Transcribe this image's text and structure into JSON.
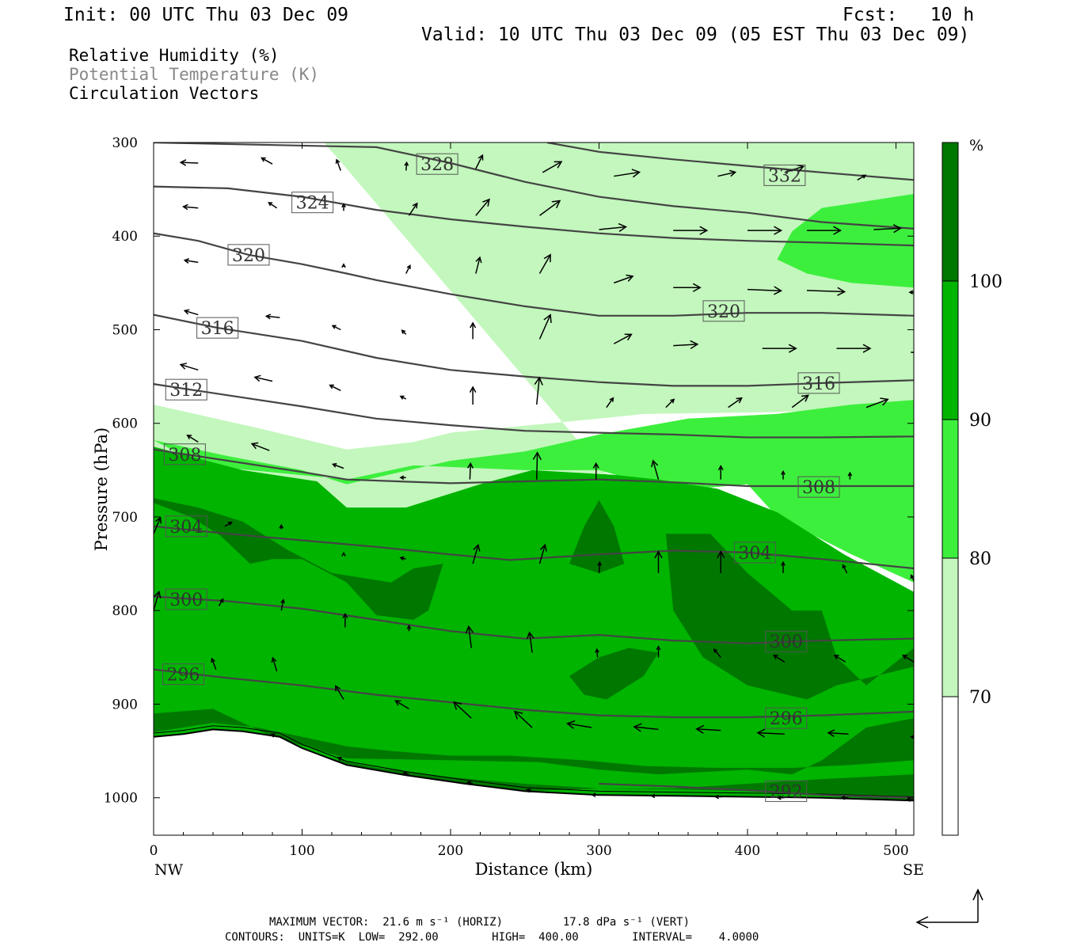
{
  "header": {
    "init": "Init: 00 UTC Thu 03 Dec 09",
    "fcst": "Fcst:   10 h",
    "valid": "Valid: 10 UTC Thu 03 Dec 09 (05 EST Thu 03 Dec 09)"
  },
  "legend": {
    "rh": "Relative Humidity (%)",
    "theta": "Potential Temperature (K)",
    "vectors": "Circulation Vectors"
  },
  "colors": {
    "rh_bands": [
      "#ffffff",
      "#c3f7bd",
      "#3def3d",
      "#00b400",
      "#007800"
    ],
    "contour": "#444444",
    "theta_legend": "#888888"
  },
  "colorbar": {
    "unit": "%",
    "ticks": [
      "70",
      "80",
      "90",
      "100"
    ]
  },
  "chart_data": {
    "type": "contour-cross-section",
    "xlabel": "Distance (km)",
    "ylabel": "Pressure (hPa)",
    "x_ticks": [
      0,
      100,
      200,
      300,
      400,
      500
    ],
    "y_ticks": [
      300,
      400,
      500,
      600,
      700,
      800,
      900,
      1000
    ],
    "xlim": [
      0,
      512
    ],
    "ylim": [
      1040,
      300
    ],
    "x_end_labels": {
      "left": "NW",
      "right": "SE"
    },
    "theta_contours": [
      {
        "label": "332",
        "label_at": [
          425,
          335
        ],
        "points": [
          [
            265,
            300
          ],
          [
            300,
            310
          ],
          [
            350,
            318
          ],
          [
            400,
            325
          ],
          [
            450,
            332
          ],
          [
            512,
            340
          ]
        ]
      },
      {
        "label": "328",
        "label_at": [
          191,
          323
        ],
        "points": [
          [
            0,
            300
          ],
          [
            150,
            305
          ],
          [
            200,
            322
          ],
          [
            250,
            342
          ],
          [
            300,
            358
          ],
          [
            350,
            368
          ],
          [
            400,
            375
          ],
          [
            450,
            385
          ],
          [
            512,
            392
          ]
        ]
      },
      {
        "label": "324",
        "label_at": [
          107,
          364
        ],
        "points": [
          [
            0,
            347
          ],
          [
            50,
            349
          ],
          [
            100,
            358
          ],
          [
            150,
            372
          ],
          [
            200,
            382
          ],
          [
            250,
            390
          ],
          [
            300,
            397
          ],
          [
            350,
            402
          ],
          [
            400,
            405
          ],
          [
            450,
            407
          ],
          [
            512,
            410
          ]
        ]
      },
      {
        "label": "320",
        "label_at": [
          64,
          420
        ],
        "points": [
          [
            0,
            397
          ],
          [
            30,
            405
          ],
          [
            64,
            420
          ],
          [
            100,
            430
          ],
          [
            130,
            440
          ],
          [
            150,
            447
          ],
          [
            200,
            462
          ],
          [
            250,
            475
          ],
          [
            300,
            485
          ],
          [
            350,
            485
          ],
          [
            400,
            482
          ],
          [
            450,
            482
          ],
          [
            512,
            485
          ]
        ]
      },
      {
        "label": "320",
        "label_at": [
          384,
          480
        ],
        "points": null
      },
      {
        "label": "316",
        "label_at": [
          43,
          498
        ],
        "points": [
          [
            0,
            484
          ],
          [
            43,
            498
          ],
          [
            100,
            512
          ],
          [
            150,
            530
          ],
          [
            200,
            543
          ],
          [
            250,
            550
          ],
          [
            300,
            556
          ],
          [
            350,
            560
          ],
          [
            400,
            560
          ],
          [
            450,
            557
          ],
          [
            512,
            554
          ]
        ]
      },
      {
        "label": "316",
        "label_at": [
          448,
          557
        ],
        "points": null
      },
      {
        "label": "312",
        "label_at": [
          22,
          564
        ],
        "points": [
          [
            0,
            558
          ],
          [
            50,
            570
          ],
          [
            100,
            582
          ],
          [
            150,
            595
          ],
          [
            200,
            602
          ],
          [
            250,
            608
          ],
          [
            300,
            610
          ],
          [
            350,
            612
          ],
          [
            400,
            615
          ],
          [
            450,
            615
          ],
          [
            512,
            614
          ]
        ]
      },
      {
        "label": "308",
        "label_at": [
          21,
          633
        ],
        "points": [
          [
            0,
            628
          ],
          [
            50,
            640
          ],
          [
            100,
            652
          ],
          [
            130,
            660
          ],
          [
            200,
            664
          ],
          [
            250,
            662
          ],
          [
            300,
            660
          ],
          [
            350,
            663
          ],
          [
            400,
            667
          ],
          [
            450,
            667
          ],
          [
            512,
            667
          ]
        ]
      },
      {
        "label": "308",
        "label_at": [
          448,
          668
        ],
        "points": null
      },
      {
        "label": "304",
        "label_at": [
          22,
          710
        ],
        "points": [
          [
            0,
            710
          ],
          [
            50,
            718
          ],
          [
            100,
            725
          ],
          [
            150,
            732
          ],
          [
            200,
            740
          ],
          [
            240,
            746
          ],
          [
            300,
            740
          ],
          [
            350,
            736
          ],
          [
            400,
            738
          ],
          [
            450,
            745
          ],
          [
            512,
            755
          ]
        ]
      },
      {
        "label": "304",
        "label_at": [
          405,
          738
        ],
        "points": null
      },
      {
        "label": "300",
        "label_at": [
          22,
          788
        ],
        "points": [
          [
            0,
            785
          ],
          [
            50,
            790
          ],
          [
            100,
            798
          ],
          [
            150,
            810
          ],
          [
            200,
            822
          ],
          [
            250,
            830
          ],
          [
            300,
            826
          ],
          [
            350,
            832
          ],
          [
            400,
            835
          ],
          [
            450,
            832
          ],
          [
            512,
            830
          ]
        ]
      },
      {
        "label": "300",
        "label_at": [
          426,
          833
        ],
        "points": null
      },
      {
        "label": "296",
        "label_at": [
          20,
          868
        ],
        "points": [
          [
            0,
            863
          ],
          [
            50,
            872
          ],
          [
            100,
            880
          ],
          [
            150,
            890
          ],
          [
            200,
            898
          ],
          [
            250,
            906
          ],
          [
            300,
            912
          ],
          [
            350,
            914
          ],
          [
            400,
            914
          ],
          [
            450,
            912
          ],
          [
            512,
            908
          ]
        ]
      },
      {
        "label": "296",
        "label_at": [
          426,
          915
        ],
        "points": null
      },
      {
        "label": "292",
        "label_at": [
          426,
          993
        ],
        "points": [
          [
            300,
            985
          ],
          [
            350,
            988
          ],
          [
            400,
            992
          ],
          [
            450,
            997
          ],
          [
            512,
            1000
          ]
        ]
      }
    ],
    "terrain_pressure": [
      [
        0,
        935
      ],
      [
        20,
        932
      ],
      [
        40,
        927
      ],
      [
        60,
        929
      ],
      [
        85,
        935
      ],
      [
        100,
        947
      ],
      [
        130,
        965
      ],
      [
        170,
        976
      ],
      [
        210,
        985
      ],
      [
        250,
        993
      ],
      [
        300,
        997
      ],
      [
        350,
        998
      ],
      [
        400,
        999
      ],
      [
        450,
        1000
      ],
      [
        512,
        1003
      ]
    ],
    "vectors": [
      [
        30,
        322,
        -1.3,
        0.05
      ],
      [
        80,
        323,
        -0.8,
        0.45
      ],
      [
        126,
        330,
        -0.3,
        0.8
      ],
      [
        170,
        330,
        0.05,
        0.6
      ],
      [
        217,
        328,
        0.5,
        1.0
      ],
      [
        262,
        332,
        1.4,
        0.8
      ],
      [
        310,
        336,
        1.9,
        0.3
      ],
      [
        380,
        336,
        1.3,
        0.3
      ],
      [
        425,
        332,
        1.4,
        0.45
      ],
      [
        474,
        340,
        0.6,
        0.35
      ],
      [
        30,
        370,
        -1.1,
        0.1
      ],
      [
        83,
        370,
        -0.6,
        0.4
      ],
      [
        128,
        373,
        0.0,
        0.5
      ],
      [
        172,
        378,
        0.6,
        0.9
      ],
      [
        217,
        378,
        1.0,
        1.2
      ],
      [
        260,
        378,
        1.5,
        1.1
      ],
      [
        300,
        393,
        2.0,
        0.2
      ],
      [
        350,
        394,
        2.5,
        0.0
      ],
      [
        400,
        394,
        2.5,
        0.0
      ],
      [
        440,
        394,
        2.5,
        0.0
      ],
      [
        485,
        393,
        2.0,
        0.1
      ],
      [
        30,
        428,
        -1.0,
        0.15
      ],
      [
        128,
        433,
        0.0,
        0.2
      ],
      [
        170,
        440,
        0.3,
        0.6
      ],
      [
        217,
        440,
        0.3,
        1.2
      ],
      [
        260,
        440,
        0.8,
        1.4
      ],
      [
        310,
        450,
        1.4,
        0.5
      ],
      [
        350,
        455,
        2.0,
        0.0
      ],
      [
        400,
        457,
        2.5,
        -0.1
      ],
      [
        440,
        458,
        2.8,
        -0.1
      ],
      [
        512,
        460,
        -0.3,
        0.0
      ],
      [
        30,
        484,
        -1.0,
        0.3
      ],
      [
        85,
        487,
        -1.0,
        0.1
      ],
      [
        126,
        500,
        -0.6,
        0.3
      ],
      [
        170,
        505,
        -0.3,
        0.3
      ],
      [
        215,
        510,
        0.0,
        1.2
      ],
      [
        260,
        510,
        0.8,
        1.8
      ],
      [
        310,
        515,
        1.3,
        0.7
      ],
      [
        350,
        517,
        1.8,
        0.1
      ],
      [
        410,
        520,
        2.5,
        0.0
      ],
      [
        460,
        520,
        2.5,
        0.0
      ],
      [
        510,
        524,
        0.5,
        -0.05
      ],
      [
        30,
        543,
        -1.3,
        0.4
      ],
      [
        80,
        555,
        -1.3,
        0.3
      ],
      [
        126,
        565,
        -0.8,
        0.4
      ],
      [
        170,
        574,
        -0.4,
        0.2
      ],
      [
        215,
        580,
        0.0,
        1.3
      ],
      [
        258,
        580,
        0.2,
        2.0
      ],
      [
        305,
        583,
        0.5,
        0.7
      ],
      [
        345,
        583,
        0.6,
        0.6
      ],
      [
        387,
        583,
        1.0,
        0.7
      ],
      [
        430,
        583,
        1.2,
        0.9
      ],
      [
        480,
        583,
        1.6,
        0.6
      ],
      [
        30,
        620,
        -0.8,
        0.5
      ],
      [
        78,
        629,
        -1.3,
        0.5
      ],
      [
        128,
        648,
        -0.8,
        0.3
      ],
      [
        170,
        658,
        -0.4,
        0.0
      ],
      [
        213,
        660,
        0.05,
        1.2
      ],
      [
        258,
        660,
        0.05,
        2.0
      ],
      [
        298,
        660,
        0.0,
        1.2
      ],
      [
        340,
        660,
        -0.4,
        1.4
      ],
      [
        382,
        660,
        0.0,
        1.0
      ],
      [
        424,
        660,
        0.0,
        0.6
      ],
      [
        469,
        660,
        0.0,
        0.5
      ],
      [
        0,
        718,
        0.5,
        1.2
      ],
      [
        48,
        710,
        0.5,
        0.3
      ],
      [
        86,
        713,
        0.0,
        0.3
      ],
      [
        128,
        740,
        0.0,
        0.1
      ],
      [
        170,
        745,
        -0.4,
        0.1
      ],
      [
        215,
        750,
        0.4,
        1.4
      ],
      [
        260,
        750,
        0.4,
        1.4
      ],
      [
        300,
        760,
        0.05,
        0.8
      ],
      [
        340,
        760,
        0.0,
        1.6
      ],
      [
        382,
        760,
        0.0,
        1.6
      ],
      [
        424,
        760,
        0.0,
        0.8
      ],
      [
        467,
        760,
        -0.3,
        0.6
      ],
      [
        512,
        768,
        -0.2,
        0.4
      ],
      [
        0,
        800,
        0.4,
        1.4
      ],
      [
        44,
        795,
        0.3,
        0.5
      ],
      [
        86,
        800,
        0.15,
        0.8
      ],
      [
        129,
        818,
        0.0,
        1.0
      ],
      [
        172,
        822,
        0.0,
        0.4
      ],
      [
        214,
        840,
        -0.2,
        1.6
      ],
      [
        255,
        845,
        -0.2,
        1.5
      ],
      [
        299,
        850,
        -0.05,
        0.6
      ],
      [
        340,
        850,
        0.0,
        0.8
      ],
      [
        382,
        850,
        -0.5,
        0.6
      ],
      [
        425,
        855,
        -0.8,
        0.5
      ],
      [
        466,
        855,
        -0.8,
        0.5
      ],
      [
        512,
        855,
        -0.8,
        0.5
      ],
      [
        42,
        863,
        -0.3,
        0.8
      ],
      [
        83,
        865,
        -0.3,
        1.0
      ],
      [
        128,
        895,
        -0.6,
        1.0
      ],
      [
        172,
        905,
        -1.0,
        0.6
      ],
      [
        214,
        915,
        -1.3,
        1.2
      ],
      [
        255,
        925,
        -1.3,
        1.2
      ],
      [
        295,
        925,
        -1.8,
        0.3
      ],
      [
        340,
        927,
        -1.8,
        0.2
      ],
      [
        382,
        928,
        -1.8,
        0.1
      ],
      [
        425,
        932,
        -2.0,
        0.1
      ],
      [
        468,
        932,
        -1.5,
        0.1
      ],
      [
        512,
        935,
        -0.2,
        0.0
      ],
      [
        83,
        935,
        -0.4,
        0.2
      ],
      [
        128,
        960,
        -0.4,
        0.2
      ],
      [
        172,
        975,
        -0.4,
        0.1
      ],
      [
        215,
        985,
        -0.4,
        0.1
      ],
      [
        255,
        993,
        -0.4,
        0.1
      ],
      [
        300,
        997,
        -0.5,
        0.0
      ],
      [
        340,
        998,
        -0.5,
        0.0
      ],
      [
        383,
        999,
        -0.5,
        0.0
      ],
      [
        425,
        1000,
        -0.5,
        0.0
      ],
      [
        468,
        1000,
        -0.5,
        0.0
      ],
      [
        512,
        1002,
        -0.5,
        0.0
      ]
    ],
    "max_vector_label": "MAXIMUM VECTOR:  21.6 m s⁻¹ (HORIZ)         17.8 dPa s⁻¹ (VERT)",
    "contour_info": "CONTOURS:  UNITS=K  LOW=  292.00        HIGH=  400.00        INTERVAL=    4.0000"
  }
}
